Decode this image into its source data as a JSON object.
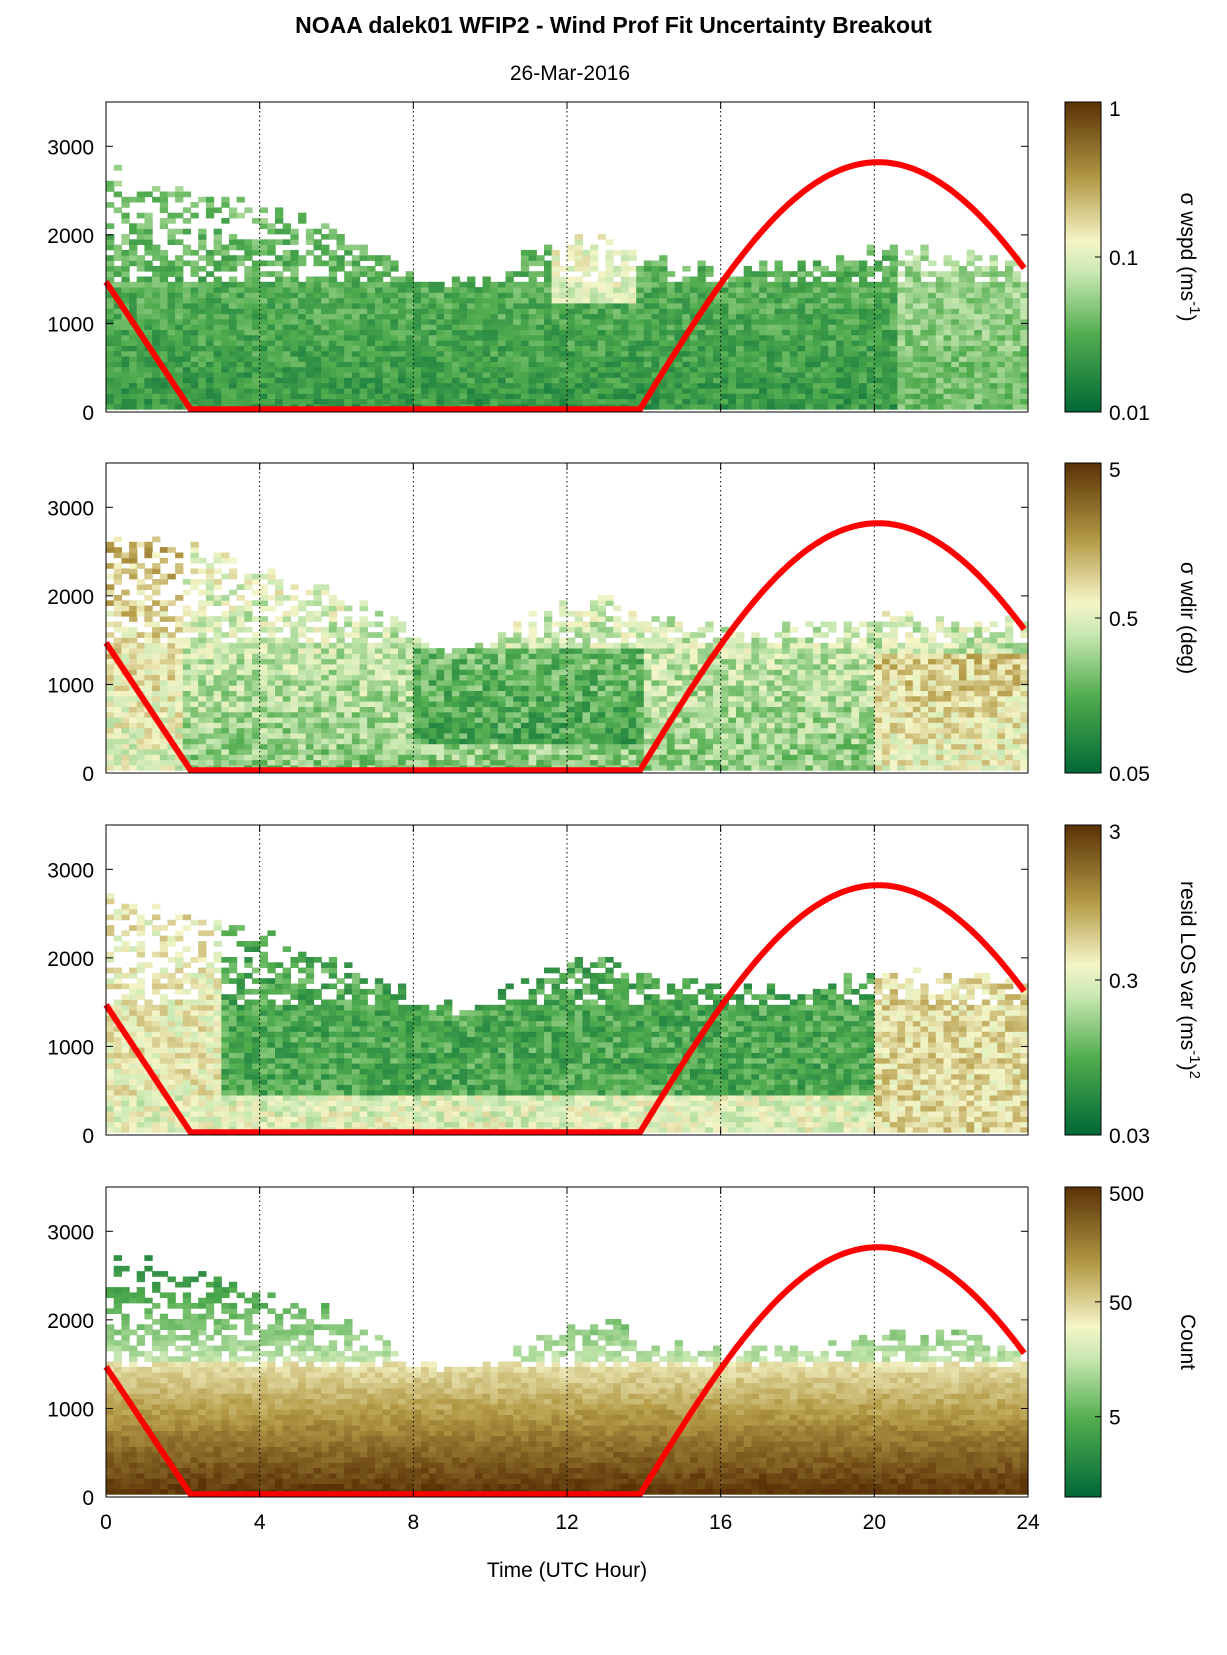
{
  "title": "NOAA dalek01 WFIP2 - Wind Prof Fit Uncertainty Breakout",
  "date": "26-Mar-2016",
  "xlabel": "Time (UTC Hour)",
  "chart_data": [
    {
      "type": "heatmap",
      "panel": 1,
      "xlim": [
        0,
        24
      ],
      "ylim": [
        0,
        3500
      ],
      "x_ticks": [
        "0",
        "4",
        "8",
        "12",
        "16",
        "20",
        "24"
      ],
      "y_ticks": [
        "0",
        "1000",
        "2000",
        "3000"
      ],
      "colorbar": {
        "scale": "log",
        "label_parts": [
          "σ wspd (ms",
          "-1",
          ")"
        ],
        "ticks": [
          "1",
          "0.1",
          "0.01"
        ],
        "range": [
          0.01,
          1
        ]
      },
      "overlay_curve": "red solar elevation curve"
    },
    {
      "type": "heatmap",
      "panel": 2,
      "xlim": [
        0,
        24
      ],
      "ylim": [
        0,
        3500
      ],
      "x_ticks": [
        "0",
        "4",
        "8",
        "12",
        "16",
        "20",
        "24"
      ],
      "y_ticks": [
        "0",
        "1000",
        "2000",
        "3000"
      ],
      "colorbar": {
        "scale": "log",
        "label_parts": [
          "σ wdir (deg)"
        ],
        "ticks": [
          "5",
          "0.5",
          "0.05"
        ],
        "range": [
          0.05,
          5
        ]
      }
    },
    {
      "type": "heatmap",
      "panel": 3,
      "xlim": [
        0,
        24
      ],
      "ylim": [
        0,
        3500
      ],
      "x_ticks": [
        "0",
        "4",
        "8",
        "12",
        "16",
        "20",
        "24"
      ],
      "y_ticks": [
        "0",
        "1000",
        "2000",
        "3000"
      ],
      "colorbar": {
        "scale": "log",
        "label_parts": [
          "resid LOS var (ms",
          "-1",
          ")",
          "2"
        ],
        "ticks": [
          "3",
          "0.3",
          "0.03"
        ],
        "range": [
          0.03,
          3
        ]
      }
    },
    {
      "type": "heatmap",
      "panel": 4,
      "xlim": [
        0,
        24
      ],
      "ylim": [
        0,
        3500
      ],
      "x_ticks": [
        "0",
        "4",
        "8",
        "12",
        "16",
        "20",
        "24"
      ],
      "y_ticks": [
        "0",
        "1000",
        "2000",
        "3000"
      ],
      "colorbar": {
        "scale": "log",
        "label_parts": [
          "Count"
        ],
        "ticks": [
          "500",
          "50",
          "5"
        ],
        "range": [
          1,
          500
        ]
      }
    }
  ],
  "red_curve": {
    "x": [
      0,
      2.2,
      13.9,
      20.1,
      23.9
    ],
    "y": [
      1470,
      30,
      30,
      2820,
      1640
    ]
  },
  "colors": {
    "red_curve": "#ff0000",
    "cmap_low": "#006837",
    "cmap_mid": "#f5f5c8",
    "cmap_high": "#5a3206"
  }
}
